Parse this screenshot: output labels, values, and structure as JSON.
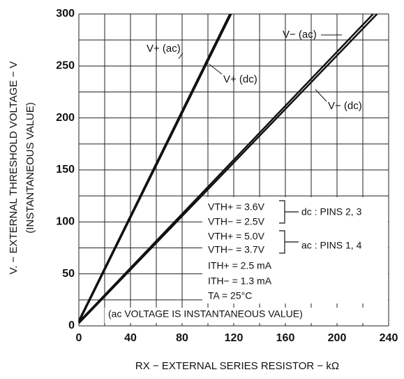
{
  "chart_data": {
    "type": "line",
    "xlabel": "RX − EXTERNAL SERIES RESISTOR − kΩ",
    "ylabel": [
      "V. − EXTERNAL THRESHOLD VOLTAGE − V",
      "(INSTANTANEOUS VALUE)"
    ],
    "xlim": [
      0,
      240
    ],
    "ylim": [
      0,
      300
    ],
    "xticks": [
      0,
      40,
      80,
      120,
      160,
      200,
      240
    ],
    "yticks": [
      0,
      50,
      100,
      150,
      200,
      250,
      300
    ],
    "xgrid": [
      20,
      60,
      100,
      140,
      180,
      220
    ],
    "ygrid": [
      25,
      75,
      125,
      175,
      225,
      275
    ],
    "grid": true,
    "series": [
      {
        "name": "V+ (ac)",
        "color": "#111111",
        "x": [
          0,
          117
        ],
        "values": [
          5,
          300
        ]
      },
      {
        "name": "V+ (dc)",
        "color": "#111111",
        "x": [
          0,
          118
        ],
        "values": [
          3.6,
          300
        ]
      },
      {
        "name": "V− (ac)",
        "color": "#111111",
        "x": [
          0,
          228
        ],
        "values": [
          3.7,
          300
        ]
      },
      {
        "name": "V− (dc)",
        "color": "#111111",
        "x": [
          0,
          231
        ],
        "values": [
          2.5,
          300
        ]
      }
    ],
    "annotations": [
      "VTH+ = 3.6V",
      "VTH− = 2.5V",
      "VTH+ = 5.0V",
      "VTH− = 3.7V",
      "ITH+ = 2.5 mA",
      "ITH− = 1.3 mA",
      "TA = 25°C"
    ],
    "pin_notes": [
      "dc : PINS 2, 3",
      "ac : PINS 1, 4"
    ],
    "footnote": "(ac VOLTAGE IS INSTANTANEOUS VALUE)"
  }
}
